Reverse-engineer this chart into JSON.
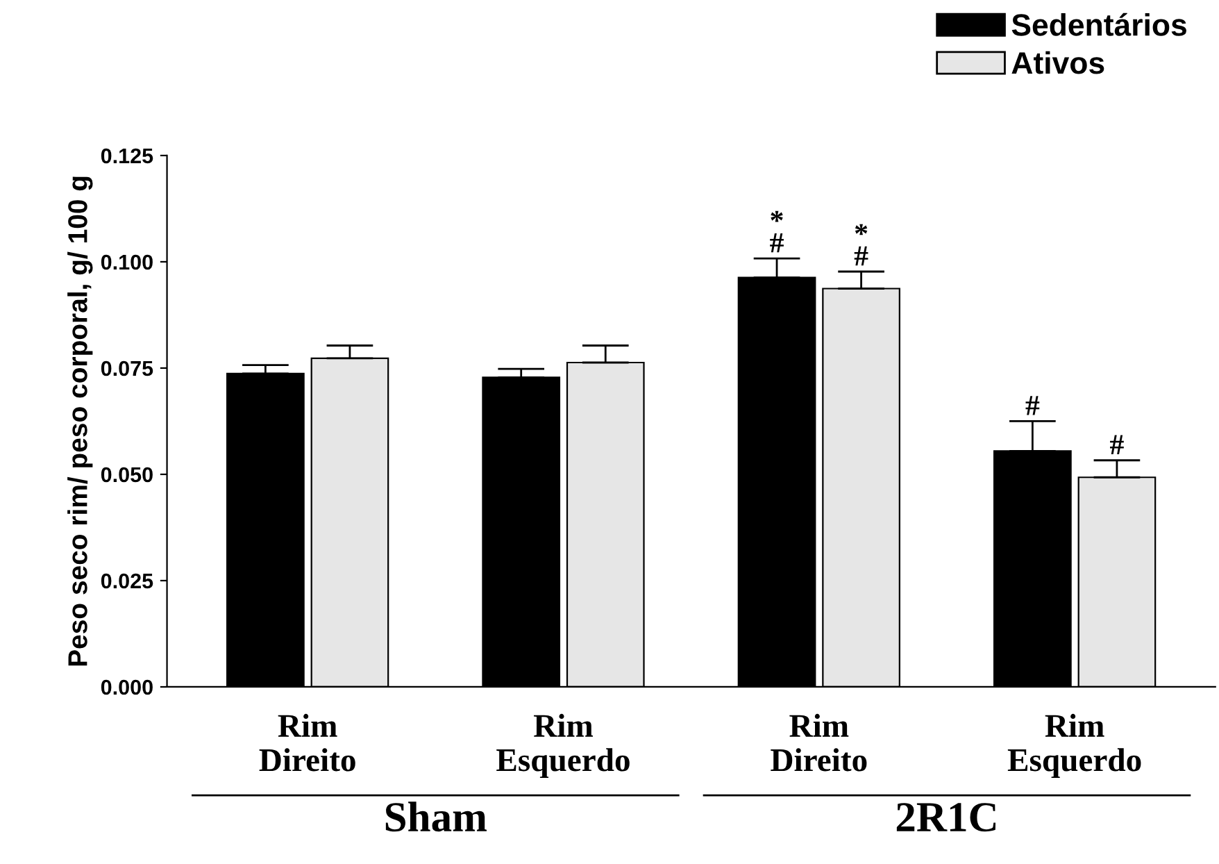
{
  "chart_data": {
    "type": "bar",
    "ylabel": "Peso seco rim/ peso corporal, g/ 100 g",
    "categories": [
      "Rim\nDireito",
      "Rim\nEsquerdo",
      "Rim\nDireito",
      "Rim\nEsquerdo"
    ],
    "series": [
      {
        "name": "Sedentários",
        "color": "#000000",
        "values": [
          0.0737,
          0.0728,
          0.0963,
          0.0555
        ],
        "errors": [
          0.002,
          0.002,
          0.0045,
          0.007
        ],
        "value_labels": [
          null,
          null,
          "*\n#",
          "#"
        ]
      },
      {
        "name": "Ativos",
        "color": "#e6e6e6",
        "values": [
          0.0773,
          0.0763,
          0.0937,
          0.0493
        ],
        "errors": [
          0.003,
          0.004,
          0.004,
          0.004
        ],
        "value_labels": [
          null,
          null,
          "*\n#",
          "#"
        ]
      }
    ],
    "annotations": [
      "Sham",
      "2R1C"
    ],
    "ylim": [
      0,
      0.125
    ],
    "yticks": [
      {
        "value": 0,
        "label": "0.000"
      },
      {
        "value": 0.025,
        "label": "0.025"
      },
      {
        "value": 0.05,
        "label": "0.050"
      },
      {
        "value": 0.075,
        "label": "0.075"
      },
      {
        "value": 0.1,
        "label": "0.100"
      },
      {
        "value": 0.125,
        "label": "0.125"
      }
    ],
    "grid": false,
    "legend": "top right"
  }
}
